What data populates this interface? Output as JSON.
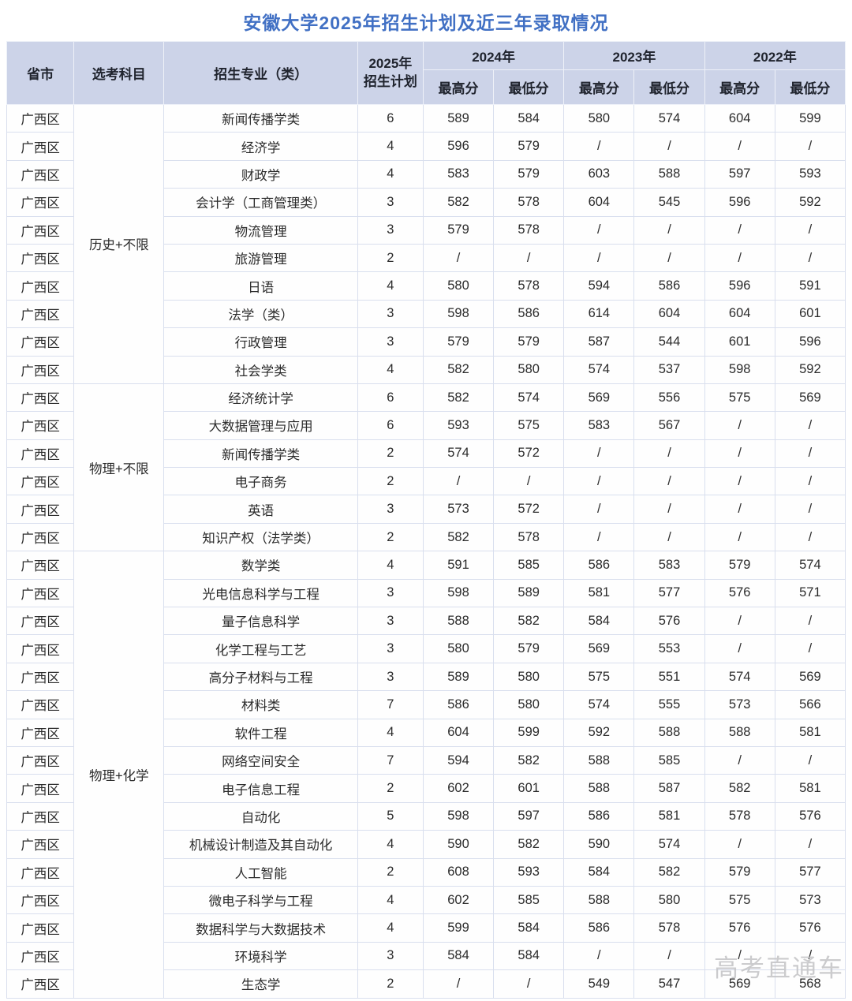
{
  "title": "安徽大学2025年招生计划及近三年录取情况",
  "watermark": "高考直通车",
  "colors": {
    "accent_blue": "#4170c4",
    "header_bg": "#ccd3e8",
    "body_border": "#d9dfee",
    "watermark_gray": "#c3c3c5"
  },
  "table": {
    "headers": {
      "province": "省市",
      "subjects": "选考科目",
      "major": "招生专业（类）",
      "plan_line1": "2025年",
      "plan_line2": "招生计划",
      "years": [
        "2024年",
        "2023年",
        "2022年"
      ],
      "max_label": "最高分",
      "min_label": "最低分"
    },
    "groups": [
      {
        "subject": "历史+不限",
        "rows": [
          {
            "province": "广西区",
            "major": "新闻传播学类",
            "plan": "6",
            "scores": [
              "589",
              "584",
              "580",
              "574",
              "604",
              "599"
            ]
          },
          {
            "province": "广西区",
            "major": "经济学",
            "plan": "4",
            "scores": [
              "596",
              "579",
              "/",
              "/",
              "/",
              "/"
            ]
          },
          {
            "province": "广西区",
            "major": "财政学",
            "plan": "4",
            "scores": [
              "583",
              "579",
              "603",
              "588",
              "597",
              "593"
            ]
          },
          {
            "province": "广西区",
            "major": "会计学（工商管理类）",
            "plan": "3",
            "scores": [
              "582",
              "578",
              "604",
              "545",
              "596",
              "592"
            ]
          },
          {
            "province": "广西区",
            "major": "物流管理",
            "plan": "3",
            "scores": [
              "579",
              "578",
              "/",
              "/",
              "/",
              "/"
            ]
          },
          {
            "province": "广西区",
            "major": "旅游管理",
            "plan": "2",
            "scores": [
              "/",
              "/",
              "/",
              "/",
              "/",
              "/"
            ]
          },
          {
            "province": "广西区",
            "major": "日语",
            "plan": "4",
            "scores": [
              "580",
              "578",
              "594",
              "586",
              "596",
              "591"
            ]
          },
          {
            "province": "广西区",
            "major": "法学（类）",
            "plan": "3",
            "scores": [
              "598",
              "586",
              "614",
              "604",
              "604",
              "601"
            ]
          },
          {
            "province": "广西区",
            "major": "行政管理",
            "plan": "3",
            "scores": [
              "579",
              "579",
              "587",
              "544",
              "601",
              "596"
            ]
          },
          {
            "province": "广西区",
            "major": "社会学类",
            "plan": "4",
            "scores": [
              "582",
              "580",
              "574",
              "537",
              "598",
              "592"
            ]
          }
        ]
      },
      {
        "subject": "物理+不限",
        "rows": [
          {
            "province": "广西区",
            "major": "经济统计学",
            "plan": "6",
            "scores": [
              "582",
              "574",
              "569",
              "556",
              "575",
              "569"
            ]
          },
          {
            "province": "广西区",
            "major": "大数据管理与应用",
            "plan": "6",
            "scores": [
              "593",
              "575",
              "583",
              "567",
              "/",
              "/"
            ]
          },
          {
            "province": "广西区",
            "major": "新闻传播学类",
            "plan": "2",
            "scores": [
              "574",
              "572",
              "/",
              "/",
              "/",
              "/"
            ]
          },
          {
            "province": "广西区",
            "major": "电子商务",
            "plan": "2",
            "scores": [
              "/",
              "/",
              "/",
              "/",
              "/",
              "/"
            ]
          },
          {
            "province": "广西区",
            "major": "英语",
            "plan": "3",
            "scores": [
              "573",
              "572",
              "/",
              "/",
              "/",
              "/"
            ]
          },
          {
            "province": "广西区",
            "major": "知识产权（法学类）",
            "plan": "2",
            "scores": [
              "582",
              "578",
              "/",
              "/",
              "/",
              "/"
            ]
          }
        ]
      },
      {
        "subject": "物理+化学",
        "rows": [
          {
            "province": "广西区",
            "major": "数学类",
            "plan": "4",
            "scores": [
              "591",
              "585",
              "586",
              "583",
              "579",
              "574"
            ]
          },
          {
            "province": "广西区",
            "major": "光电信息科学与工程",
            "plan": "3",
            "scores": [
              "598",
              "589",
              "581",
              "577",
              "576",
              "571"
            ]
          },
          {
            "province": "广西区",
            "major": "量子信息科学",
            "plan": "3",
            "scores": [
              "588",
              "582",
              "584",
              "576",
              "/",
              "/"
            ]
          },
          {
            "province": "广西区",
            "major": "化学工程与工艺",
            "plan": "3",
            "scores": [
              "580",
              "579",
              "569",
              "553",
              "/",
              "/"
            ]
          },
          {
            "province": "广西区",
            "major": "高分子材料与工程",
            "plan": "3",
            "scores": [
              "589",
              "580",
              "575",
              "551",
              "574",
              "569"
            ]
          },
          {
            "province": "广西区",
            "major": "材料类",
            "plan": "7",
            "scores": [
              "586",
              "580",
              "574",
              "555",
              "573",
              "566"
            ]
          },
          {
            "province": "广西区",
            "major": "软件工程",
            "plan": "4",
            "scores": [
              "604",
              "599",
              "592",
              "588",
              "588",
              "581"
            ]
          },
          {
            "province": "广西区",
            "major": "网络空间安全",
            "plan": "7",
            "scores": [
              "594",
              "582",
              "588",
              "585",
              "/",
              "/"
            ]
          },
          {
            "province": "广西区",
            "major": "电子信息工程",
            "plan": "2",
            "scores": [
              "602",
              "601",
              "588",
              "587",
              "582",
              "581"
            ]
          },
          {
            "province": "广西区",
            "major": "自动化",
            "plan": "5",
            "scores": [
              "598",
              "597",
              "586",
              "581",
              "578",
              "576"
            ]
          },
          {
            "province": "广西区",
            "major": "机械设计制造及其自动化",
            "plan": "4",
            "scores": [
              "590",
              "582",
              "590",
              "574",
              "/",
              "/"
            ]
          },
          {
            "province": "广西区",
            "major": "人工智能",
            "plan": "2",
            "scores": [
              "608",
              "593",
              "584",
              "582",
              "579",
              "577"
            ]
          },
          {
            "province": "广西区",
            "major": "微电子科学与工程",
            "plan": "4",
            "scores": [
              "602",
              "585",
              "588",
              "580",
              "575",
              "573"
            ]
          },
          {
            "province": "广西区",
            "major": "数据科学与大数据技术",
            "plan": "4",
            "scores": [
              "599",
              "584",
              "586",
              "578",
              "576",
              "576"
            ]
          },
          {
            "province": "广西区",
            "major": "环境科学",
            "plan": "3",
            "scores": [
              "584",
              "584",
              "/",
              "/",
              "/",
              "/"
            ]
          },
          {
            "province": "广西区",
            "major": "生态学",
            "plan": "2",
            "scores": [
              "/",
              "/",
              "549",
              "547",
              "569",
              "568"
            ]
          }
        ]
      }
    ]
  }
}
